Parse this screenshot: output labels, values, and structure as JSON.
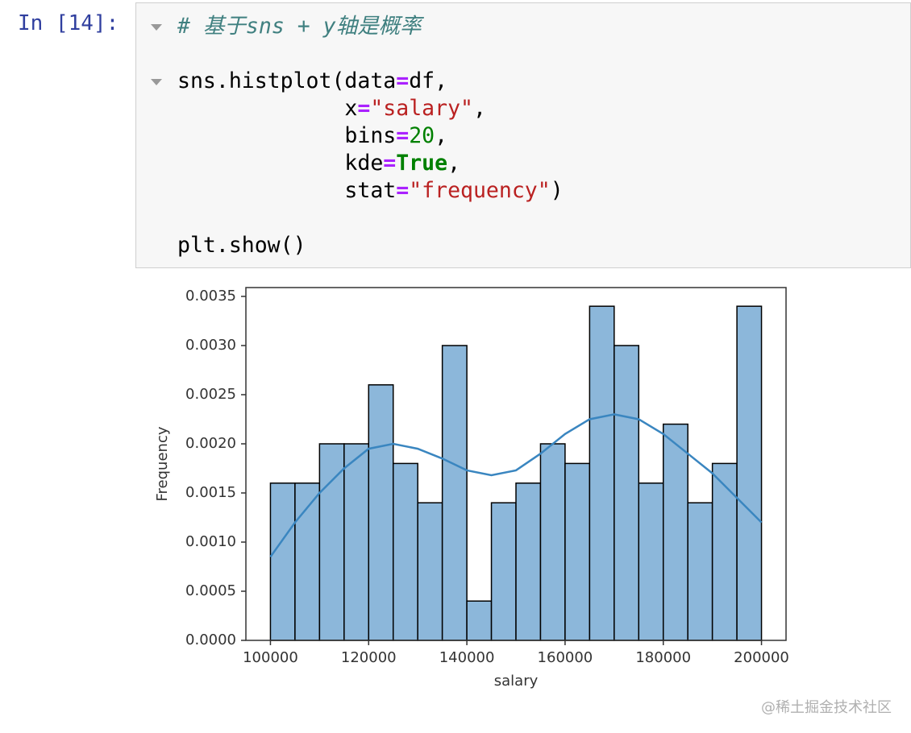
{
  "prompt": "In [14]:",
  "code": {
    "lines": [
      [
        {
          "text": "# 基于sns + y轴是概率",
          "cls": "comment"
        }
      ],
      [],
      [
        {
          "text": "sns.histplot(data",
          "cls": "plain"
        },
        {
          "text": "=",
          "cls": "op"
        },
        {
          "text": "df,",
          "cls": "plain"
        }
      ],
      [
        {
          "text": "             x",
          "cls": "plain"
        },
        {
          "text": "=",
          "cls": "op"
        },
        {
          "text": "\"salary\"",
          "cls": "str"
        },
        {
          "text": ",",
          "cls": "plain"
        }
      ],
      [
        {
          "text": "             bins",
          "cls": "plain"
        },
        {
          "text": "=",
          "cls": "op"
        },
        {
          "text": "20",
          "cls": "num"
        },
        {
          "text": ",",
          "cls": "plain"
        }
      ],
      [
        {
          "text": "             kde",
          "cls": "plain"
        },
        {
          "text": "=",
          "cls": "op"
        },
        {
          "text": "True",
          "cls": "kw"
        },
        {
          "text": ",",
          "cls": "plain"
        }
      ],
      [
        {
          "text": "             stat",
          "cls": "plain"
        },
        {
          "text": "=",
          "cls": "op"
        },
        {
          "text": "\"frequency\"",
          "cls": "str"
        },
        {
          "text": ")",
          "cls": "plain"
        }
      ],
      [],
      [
        {
          "text": "plt.show()",
          "cls": "plain"
        }
      ]
    ]
  },
  "chart_data": {
    "type": "histogram",
    "x_label": "salary",
    "y_label": "Frequency",
    "bins": [
      100000,
      105000,
      110000,
      115000,
      120000,
      125000,
      130000,
      135000,
      140000,
      145000,
      150000,
      155000,
      160000,
      165000,
      170000,
      175000,
      180000,
      185000,
      190000,
      195000,
      200000
    ],
    "values": [
      0.0016,
      0.0016,
      0.002,
      0.002,
      0.0026,
      0.0018,
      0.0014,
      0.003,
      0.0004,
      0.0014,
      0.0016,
      0.002,
      0.0018,
      0.0034,
      0.003,
      0.0016,
      0.0022,
      0.0014,
      0.0018,
      0.0034
    ],
    "color": "#8cb7da",
    "edgecolor": "#000000",
    "kde": {
      "x": [
        100000,
        105000,
        110000,
        115000,
        120000,
        125000,
        130000,
        135000,
        140000,
        145000,
        150000,
        155000,
        160000,
        165000,
        170000,
        175000,
        180000,
        185000,
        190000,
        195000,
        200000
      ],
      "values": [
        0.00085,
        0.0012,
        0.0015,
        0.00175,
        0.00195,
        0.002,
        0.00195,
        0.00185,
        0.00173,
        0.00168,
        0.00173,
        0.0019,
        0.0021,
        0.00225,
        0.0023,
        0.00225,
        0.0021,
        0.0019,
        0.0017,
        0.00145,
        0.0012
      ],
      "color": "#3a86c0"
    },
    "xlim": [
      95000,
      205000
    ],
    "ylim": [
      0,
      0.00359
    ],
    "xticks": [
      100000,
      120000,
      140000,
      160000,
      180000,
      200000
    ],
    "yticks": [
      {
        "value": 0,
        "label": "0.0000"
      },
      {
        "value": 0.0005,
        "label": "0.0005"
      },
      {
        "value": 0.001,
        "label": "0.0010"
      },
      {
        "value": 0.0015,
        "label": "0.0015"
      },
      {
        "value": 0.002,
        "label": "0.0020"
      },
      {
        "value": 0.0025,
        "label": "0.0025"
      },
      {
        "value": 0.003,
        "label": "0.0030"
      },
      {
        "value": 0.0035,
        "label": "0.0035"
      }
    ]
  },
  "watermark": "@稀土掘金技术社区"
}
